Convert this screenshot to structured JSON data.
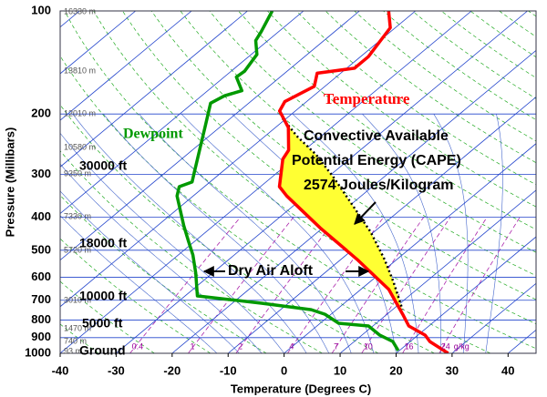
{
  "chart_data": {
    "type": "skew-t",
    "x_label": "Temperature (Degrees C)",
    "y_label": "Pressure (Millibars)",
    "xlim": [
      -40,
      45
    ],
    "xticks": [
      -40,
      -30,
      -20,
      -10,
      0,
      10,
      20,
      30,
      40
    ],
    "ylim": [
      1000,
      100
    ],
    "yticks": [
      100,
      200,
      300,
      400,
      500,
      600,
      700,
      800,
      900,
      1000
    ],
    "y_log": true,
    "series": [
      {
        "name": "Temperature",
        "color": "#ff0000",
        "pressure": [
          100,
          112,
          136,
          147,
          152,
          166,
          184,
          196,
          219,
          255,
          271,
          326,
          347,
          430,
          532,
          651,
          769,
          832,
          885,
          924,
          1000
        ],
        "values": [
          -54.8,
          -50.9,
          -48.6,
          -48.6,
          -54.2,
          -51.9,
          -53.9,
          -52.8,
          -47.7,
          -42.8,
          -41.9,
          -36.6,
          -33.3,
          -20.5,
          -7.1,
          5,
          12.8,
          16.4,
          21.3,
          23.5,
          29.3
        ]
      },
      {
        "name": "Dewpoint",
        "color": "#009900",
        "pressure": [
          100,
          115,
          122,
          134,
          150,
          156,
          171,
          177,
          186,
          219,
          255,
          297,
          316,
          326,
          347,
          424,
          471,
          516,
          583,
          680,
          714,
          746,
          769,
          817,
          832,
          885,
          924,
          982
        ],
        "values": [
          -75.6,
          -73.1,
          -72.2,
          -69.0,
          -67.6,
          -67.8,
          -63.9,
          -65.9,
          -66.8,
          -62.6,
          -58.7,
          -54.8,
          -53.2,
          -54.5,
          -52.9,
          -45.3,
          -41.1,
          -37.4,
          -33.0,
          -27.8,
          -14.8,
          -4.5,
          -1.1,
          3.3,
          9.2,
          13.2,
          16.9,
          19.8
        ]
      }
    ],
    "parcel": {
      "color": "#000000",
      "pressure": [
        206,
        233,
        263,
        307,
        369,
        443,
        532,
        620,
        746
      ],
      "values": [
        -50.7,
        -44.1,
        -36.9,
        -28.8,
        -19.6,
        -10.5,
        -2.2,
        4.3,
        11.8
      ]
    },
    "cape_color": "#ffff33",
    "cape_text": [
      "Convective Available",
      "Potential Energy (CAPE)",
      "2574 Joules/Kilogram"
    ],
    "dry_air_text": "Dry Air Aloft",
    "altitude_labels": [
      "30000 ft",
      "18000 ft",
      "10000 ft",
      "5000 ft",
      "Ground"
    ],
    "height_labels": [
      "16330 m",
      "13810 m",
      "12010 m",
      "10580 m",
      "9350 m",
      "7330 m",
      "5720 m",
      "3010 m",
      "1470 m",
      "740 m",
      "93 m"
    ],
    "mixing_ratios": [
      0.4,
      1,
      2,
      4,
      7,
      10,
      16,
      24
    ],
    "mixing_ratio_unit": "g/kg"
  }
}
